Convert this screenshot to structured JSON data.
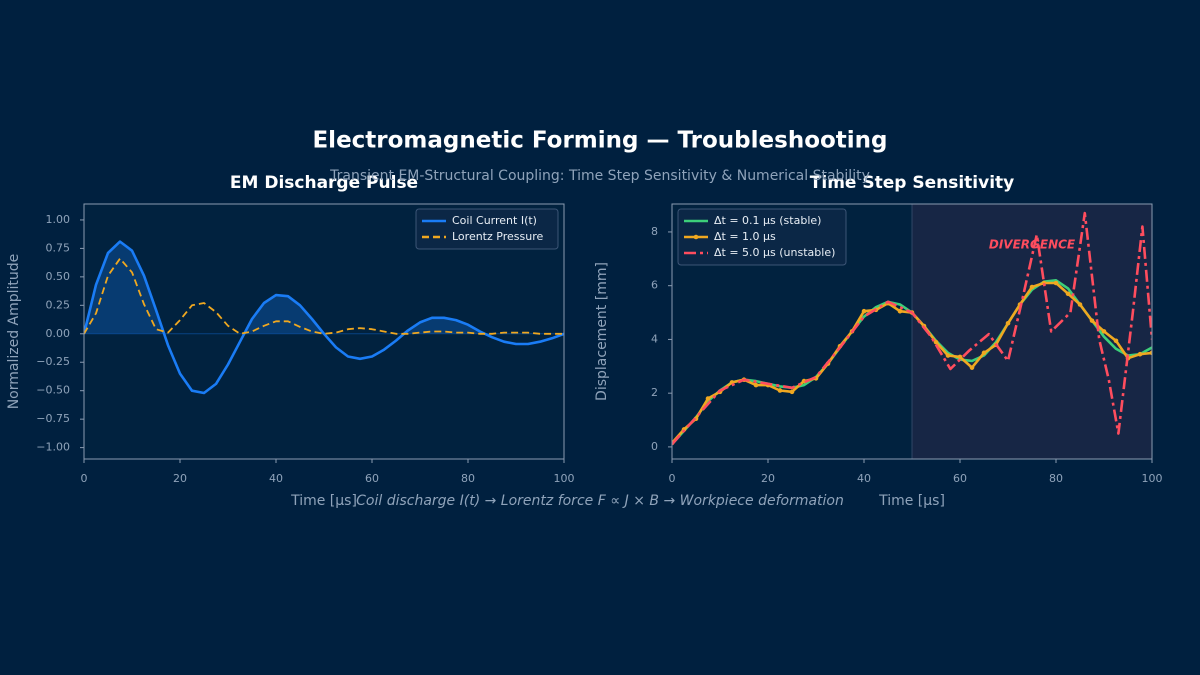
{
  "title": "Electromagnetic Forming — Troubleshooting",
  "subtitle": "Transient EM-Structural Coupling: Time Step Sensitivity & Numerical Stability",
  "caption": "Coil discharge I(t) → Lorentz force F ∝ J × B → Workpiece deformation",
  "chart_data": [
    {
      "type": "line",
      "title": "EM Discharge Pulse",
      "xlabel": "Time [µs]",
      "ylabel": "Normalized Amplitude",
      "x": [
        0,
        2.5,
        5,
        7.5,
        10,
        12.5,
        15,
        17.5,
        20,
        22.5,
        25,
        27.5,
        30,
        32.5,
        35,
        37.5,
        40,
        42.5,
        45,
        47.5,
        50,
        52.5,
        55,
        57.5,
        60,
        62.5,
        65,
        67.5,
        70,
        72.5,
        75,
        77.5,
        80,
        82.5,
        85,
        87.5,
        90,
        92.5,
        95,
        97.5,
        100
      ],
      "series": [
        {
          "name": "Coil Current I(t)",
          "color": "#1a7cf5",
          "style": "solid",
          "fill_positive": true,
          "values": [
            0,
            0.43,
            0.71,
            0.81,
            0.73,
            0.51,
            0.21,
            -0.1,
            -0.35,
            -0.5,
            -0.52,
            -0.44,
            -0.27,
            -0.07,
            0.13,
            0.27,
            0.34,
            0.33,
            0.25,
            0.13,
            0,
            -0.12,
            -0.2,
            -0.22,
            -0.2,
            -0.14,
            -0.06,
            0.03,
            0.1,
            0.14,
            0.14,
            0.12,
            0.08,
            0.02,
            -0.03,
            -0.07,
            -0.09,
            -0.09,
            -0.07,
            -0.04,
            0
          ]
        },
        {
          "name": "Lorentz Pressure",
          "color": "#f0a820",
          "style": "dashed",
          "values": [
            0,
            0.18,
            0.51,
            0.66,
            0.54,
            0.26,
            0.04,
            0.01,
            0.12,
            0.25,
            0.27,
            0.19,
            0.07,
            0,
            0.02,
            0.07,
            0.11,
            0.11,
            0.06,
            0.02,
            0,
            0.01,
            0.04,
            0.05,
            0.04,
            0.02,
            0,
            0,
            0.01,
            0.02,
            0.02,
            0.01,
            0.01,
            0,
            0,
            0.01,
            0.01,
            0.01,
            0,
            0,
            0
          ]
        }
      ],
      "xlim": [
        0,
        100
      ],
      "ylim": [
        -1.1,
        1.14
      ],
      "xticks": [
        0,
        20,
        40,
        60,
        80,
        100
      ],
      "yticks": [
        {
          "value": -1,
          "label": "−1.00"
        },
        {
          "value": -0.75,
          "label": "−0.75"
        },
        {
          "value": -0.5,
          "label": "−0.50"
        },
        {
          "value": -0.25,
          "label": "−0.25"
        },
        {
          "value": 0,
          "label": "0.00"
        },
        {
          "value": 0.25,
          "label": "0.25"
        },
        {
          "value": 0.5,
          "label": "0.50"
        },
        {
          "value": 0.75,
          "label": "0.75"
        },
        {
          "value": 1,
          "label": "1.00"
        }
      ],
      "legend": "upper right"
    },
    {
      "type": "line",
      "title": "Time Step Sensitivity",
      "xlabel": "Time [µs]",
      "ylabel": "Displacement [mm]",
      "x": [
        0,
        2.5,
        5,
        7.5,
        10,
        12.5,
        15,
        17.5,
        20,
        22.5,
        25,
        27.5,
        30,
        32.5,
        35,
        37.5,
        40,
        42.5,
        45,
        47.5,
        50,
        52.5,
        55,
        57.5,
        60,
        62.5,
        65,
        67.5,
        70,
        72.5,
        75,
        77.5,
        80,
        82.5,
        85,
        87.5,
        90,
        92.5,
        95,
        97.5,
        100
      ],
      "series": [
        {
          "name": "Δt = 0.1 µs (stable)",
          "color": "#3ccf7a",
          "style": "solid",
          "values": [
            0.1,
            0.6,
            1.1,
            1.7,
            2.1,
            2.4,
            2.5,
            2.45,
            2.35,
            2.25,
            2.2,
            2.3,
            2.6,
            3.1,
            3.7,
            4.3,
            4.85,
            5.2,
            5.4,
            5.3,
            5,
            4.5,
            3.95,
            3.5,
            3.25,
            3.2,
            3.4,
            3.9,
            4.6,
            5.3,
            5.85,
            6.15,
            6.2,
            5.9,
            5.3,
            4.7,
            4.1,
            3.65,
            3.4,
            3.45,
            3.7
          ]
        },
        {
          "name": "Δt = 1.0 µs",
          "color": "#f0a820",
          "style": "solid",
          "marker": true,
          "values": [
            0.15,
            0.65,
            1.05,
            1.8,
            2.05,
            2.4,
            2.5,
            2.3,
            2.3,
            2.1,
            2.05,
            2.45,
            2.55,
            3.1,
            3.75,
            4.3,
            5.05,
            5.1,
            5.35,
            5.05,
            5,
            4.5,
            3.9,
            3.4,
            3.35,
            2.95,
            3.5,
            3.8,
            4.6,
            5.3,
            5.95,
            6.1,
            6.1,
            5.7,
            5.3,
            4.7,
            4.3,
            3.95,
            3.3,
            3.45,
            3.5
          ]
        },
        {
          "name": "Δt = 5.0 µs (unstable)",
          "color": "#ff4d5e",
          "style": "dashdot",
          "x": [
            0,
            5,
            10,
            15,
            20,
            25,
            30,
            35,
            40,
            45,
            50,
            54,
            58,
            62,
            66,
            70,
            73,
            76,
            79,
            83,
            86,
            89,
            91,
            93,
            96,
            98,
            100
          ],
          "values": [
            0.1,
            1.1,
            2.1,
            2.5,
            2.35,
            2.2,
            2.6,
            3.7,
            4.85,
            5.4,
            5,
            4.1,
            2.9,
            3.6,
            4.2,
            3.2,
            5.5,
            7.9,
            4.3,
            5,
            8.7,
            4,
            2.5,
            0.5,
            5,
            8.2,
            4
          ]
        }
      ],
      "xlim": [
        0,
        100
      ],
      "ylim": [
        -0.45,
        9.04
      ],
      "xticks": [
        0,
        20,
        40,
        60,
        80,
        100
      ],
      "yticks": [
        0,
        2,
        4,
        6,
        8
      ],
      "shade_x": [
        50,
        100
      ],
      "annotation": "DIVERGENCE",
      "legend": "upper left"
    }
  ]
}
